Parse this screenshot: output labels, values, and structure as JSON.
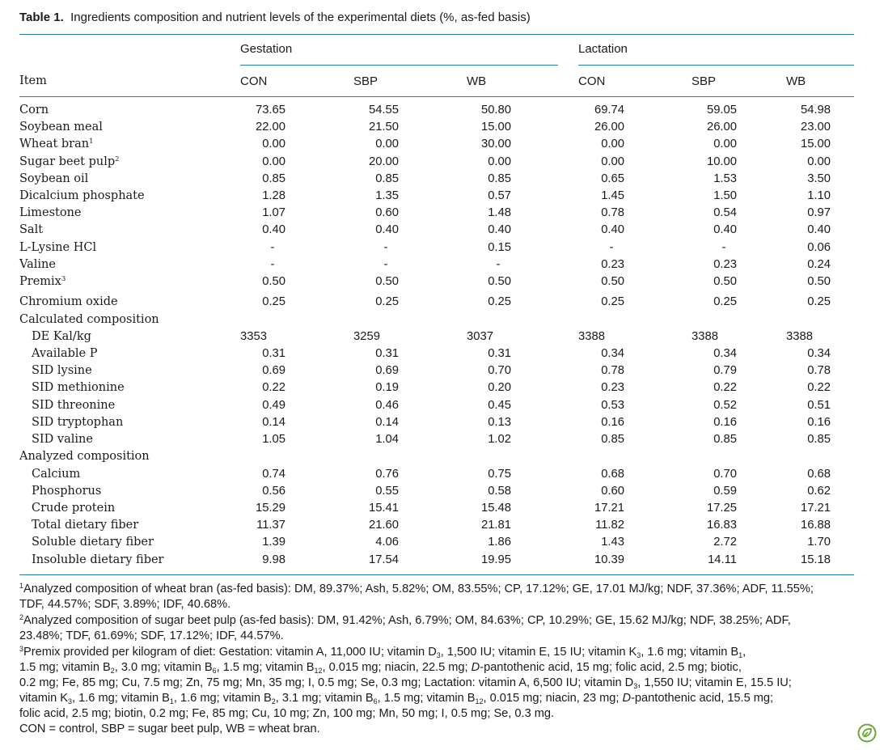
{
  "caption": {
    "label": "Table 1.",
    "text": "Ingredients composition and nutrient levels of the experimental diets (%, as-fed basis)"
  },
  "header": {
    "item": "Item",
    "groups": [
      "Gestation",
      "Lactation"
    ],
    "columns": [
      "CON",
      "SBP",
      "WB",
      "CON",
      "SBP",
      "WB"
    ]
  },
  "rows": [
    {
      "label": "Corn",
      "values": [
        "73.65",
        "54.55",
        "50.80",
        "69.74",
        "59.05",
        "54.98"
      ]
    },
    {
      "label": "Soybean meal",
      "values": [
        "22.00",
        "21.50",
        "15.00",
        "26.00",
        "26.00",
        "23.00"
      ]
    },
    {
      "label": "Wheat bran",
      "fn": "1",
      "values": [
        "0.00",
        "0.00",
        "30.00",
        "0.00",
        "0.00",
        "15.00"
      ]
    },
    {
      "label": "Sugar beet pulp",
      "fn": "2",
      "values": [
        "0.00",
        "20.00",
        "0.00",
        "0.00",
        "10.00",
        "0.00"
      ]
    },
    {
      "label": "Soybean oil",
      "values": [
        "0.85",
        "0.85",
        "0.85",
        "0.65",
        "1.53",
        "3.50"
      ]
    },
    {
      "label": "Dicalcium phosphate",
      "values": [
        "1.28",
        "1.35",
        "0.57",
        "1.45",
        "1.50",
        "1.10"
      ]
    },
    {
      "label": "Limestone",
      "values": [
        "1.07",
        "0.60",
        "1.48",
        "0.78",
        "0.54",
        "0.97"
      ]
    },
    {
      "label": "Salt",
      "values": [
        "0.40",
        "0.40",
        "0.40",
        "0.40",
        "0.40",
        "0.40"
      ]
    },
    {
      "label": "L-Lysine HCl",
      "values": [
        "-",
        "-",
        "0.15",
        "-",
        "-",
        "0.06"
      ]
    },
    {
      "label": "Valine",
      "values": [
        "-",
        "-",
        "-",
        "0.23",
        "0.23",
        "0.24"
      ]
    },
    {
      "label": "Premix",
      "fn": "3",
      "values": [
        "0.50",
        "0.50",
        "0.50",
        "0.50",
        "0.50",
        "0.50"
      ]
    },
    {
      "label": "Chromium oxide",
      "values": [
        "0.25",
        "0.25",
        "0.25",
        "0.25",
        "0.25",
        "0.25"
      ]
    },
    {
      "label": "Calculated composition",
      "section": true
    },
    {
      "label": "DE Kal/kg",
      "indent": true,
      "left": true,
      "values": [
        "3353",
        "3259",
        "3037",
        "3388",
        "3388",
        "3388"
      ]
    },
    {
      "label": "Available P",
      "indent": true,
      "values": [
        "0.31",
        "0.31",
        "0.31",
        "0.34",
        "0.34",
        "0.34"
      ]
    },
    {
      "label": "SID lysine",
      "indent": true,
      "values": [
        "0.69",
        "0.69",
        "0.70",
        "0.78",
        "0.79",
        "0.78"
      ]
    },
    {
      "label": "SID methionine",
      "indent": true,
      "values": [
        "0.22",
        "0.19",
        "0.20",
        "0.23",
        "0.22",
        "0.22"
      ]
    },
    {
      "label": "SID threonine",
      "indent": true,
      "values": [
        "0.49",
        "0.46",
        "0.45",
        "0.53",
        "0.52",
        "0.51"
      ]
    },
    {
      "label": "SID tryptophan",
      "indent": true,
      "values": [
        "0.14",
        "0.14",
        "0.13",
        "0.16",
        "0.16",
        "0.16"
      ]
    },
    {
      "label": "SID valine",
      "indent": true,
      "values": [
        "1.05",
        "1.04",
        "1.02",
        "0.85",
        "0.85",
        "0.85"
      ]
    },
    {
      "label": "Analyzed composition",
      "section": true
    },
    {
      "label": "Calcium",
      "indent": true,
      "values": [
        "0.74",
        "0.76",
        "0.75",
        "0.68",
        "0.70",
        "0.68"
      ]
    },
    {
      "label": "Phosphorus",
      "indent": true,
      "values": [
        "0.56",
        "0.55",
        "0.58",
        "0.60",
        "0.59",
        "0.62"
      ]
    },
    {
      "label": "Crude protein",
      "indent": true,
      "values": [
        "15.29",
        "15.41",
        "15.48",
        "17.21",
        "17.25",
        "17.21"
      ]
    },
    {
      "label": "Total dietary fiber",
      "indent": true,
      "values": [
        "11.37",
        "21.60",
        "21.81",
        "11.82",
        "16.83",
        "16.88"
      ]
    },
    {
      "label": "Soluble dietary fiber",
      "indent": true,
      "values": [
        "1.39",
        "4.06",
        "1.86",
        "1.43",
        "2.72",
        "1.70"
      ]
    },
    {
      "label": "Insoluble dietary fiber",
      "indent": true,
      "values": [
        "9.98",
        "17.54",
        "19.95",
        "10.39",
        "14.11",
        "15.18"
      ]
    }
  ],
  "footnotes": {
    "fn1_line1": "Analyzed composition of wheat bran (as-fed basis): DM, 89.37%; Ash, 5.82%; OM, 83.55%; CP, 17.12%; GE, 17.01 MJ/kg; NDF, 37.36%; ADF, 11.55%;",
    "fn1_line2": "TDF, 44.57%; SDF, 3.89%; IDF, 40.68%.",
    "fn2_line1": "Analyzed composition of sugar beet pulp (as-fed basis): DM, 91.42%; Ash, 6.79%; OM, 84.63%; CP, 10.29%; GE, 15.62 MJ/kg; NDF, 38.25%; ADF,",
    "fn2_line2": "23.48%; TDF, 61.69%; SDF, 17.12%; IDF, 44.57%.",
    "fn3_line1": "Premix provided per kilogram of diet: Gestation: vitamin A, 11,000 IU; vitamin D3, 1,500 IU; vitamin E, 15 IU; vitamin K3, 1.6 mg; vitamin B1,",
    "fn3_line2": "1.5 mg; vitamin B2, 3.0 mg; vitamin B6, 1.5 mg; vitamin B12, 0.015 mg; niacin, 22.5 mg; D-pantothenic acid, 15 mg; folic acid, 2.5 mg; biotic,",
    "fn3_line3": "0.2 mg; Fe, 85 mg; Cu, 7.5 mg; Zn, 75 mg; Mn, 35 mg; I, 0.5 mg; Se, 0.3 mg; Lactation: vitamin A, 6,500 IU; vitamin D3, 1,550 IU; vitamin E, 15.5 IU;",
    "fn3_line4": "vitamin K3, 1.6 mg; vitamin B1, 1.6 mg; vitamin B2, 3.1 mg; vitamin B6, 1.5 mg; vitamin B12, 0.015 mg; niacin, 23 mg; D-pantothenic acid, 15.5 mg;",
    "fn3_line5": "folic acid, 2.5 mg; biotin, 0.2 mg; Fe, 85 mg; Cu, 10 mg; Zn, 100 mg; Mn, 50 mg; I, 0.5 mg; Se, 0.3 mg.",
    "abbrev": "CON = control, SBP = sugar beet pulp, WB = wheat bran."
  },
  "colors": {
    "rule": "#2f7aa3",
    "badge": "#6aa63b"
  },
  "icons": {
    "badge": "leaf-badge-icon"
  }
}
